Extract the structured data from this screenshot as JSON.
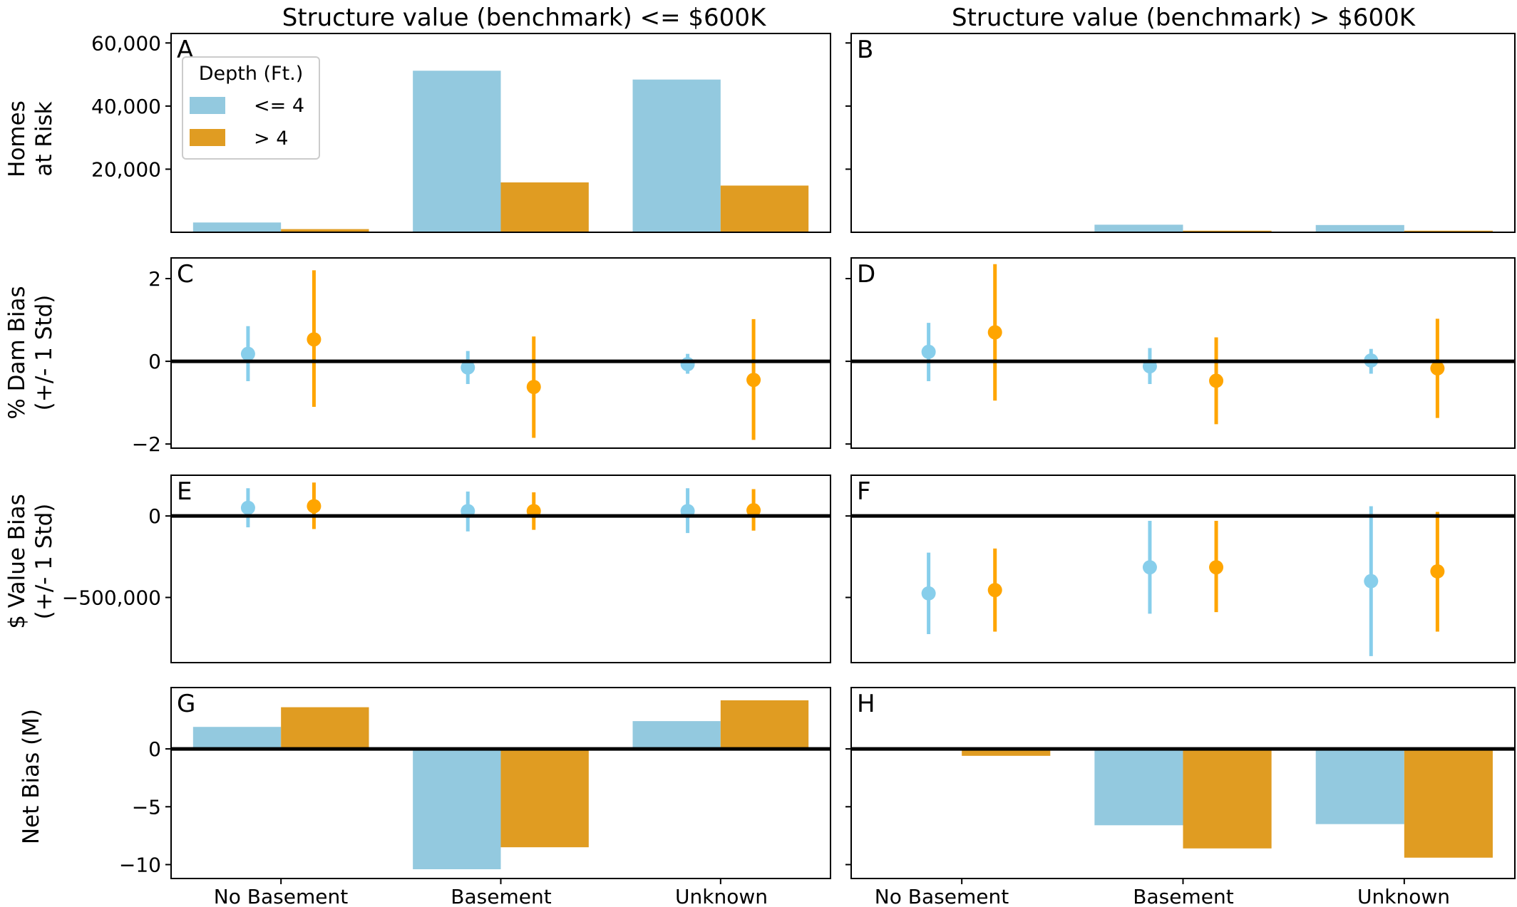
{
  "figure": {
    "column_titles": [
      "Structure value (benchmark) <= $600K",
      "Structure value (benchmark) > $600K"
    ],
    "row_labels": [
      [
        "Homes",
        "at Risk"
      ],
      [
        "% Dam Bias",
        "(+/- 1 Std)"
      ],
      [
        "$ Value Bias",
        "(+/- 1 Std)"
      ],
      [
        "Net Bias (M)"
      ]
    ],
    "categories": [
      "No Basement",
      "Basement",
      "Unknown"
    ],
    "legend": {
      "title": "Depth (Ft.)",
      "entries": [
        "<= 4",
        "> 4"
      ],
      "placement": "top-left of panel A"
    },
    "colors": {
      "bar_shallow": "#93c9df",
      "bar_deep": "#e09c22",
      "point_shallow": "#87ceeb",
      "point_deep": "#ffa500"
    }
  },
  "chart_data": [
    {
      "panel": "A",
      "type": "bar",
      "row": 0,
      "col": 0,
      "ylim": [
        0,
        63000
      ],
      "yticks": [
        20000,
        40000,
        60000
      ],
      "ytick_labels": [
        "20,000",
        "40,000",
        "60,000"
      ],
      "series": [
        {
          "name": "<= 4",
          "values": [
            3100,
            51200,
            48400
          ]
        },
        {
          "name": "> 4",
          "values": [
            1000,
            15800,
            14800
          ]
        }
      ]
    },
    {
      "panel": "B",
      "type": "bar",
      "row": 0,
      "col": 1,
      "ylim": [
        0,
        63000
      ],
      "yticks": [
        20000,
        40000,
        60000
      ],
      "series": [
        {
          "name": "<= 4",
          "values": [
            0,
            2400,
            2300
          ]
        },
        {
          "name": "> 4",
          "values": [
            0,
            500,
            500
          ]
        }
      ]
    },
    {
      "panel": "C",
      "type": "errorbar",
      "row": 1,
      "col": 0,
      "ylim": [
        -2.1,
        2.5
      ],
      "yticks": [
        -2,
        0,
        2
      ],
      "ytick_labels": [
        "−2",
        "0",
        "2"
      ],
      "zero_line": true,
      "series": [
        {
          "name": "<= 4",
          "mean": [
            0.18,
            -0.15,
            -0.07
          ],
          "low": [
            -0.48,
            -0.55,
            -0.3
          ],
          "high": [
            0.85,
            0.25,
            0.18
          ]
        },
        {
          "name": "> 4",
          "mean": [
            0.53,
            -0.62,
            -0.45
          ],
          "low": [
            -1.1,
            -1.85,
            -1.9
          ],
          "high": [
            2.2,
            0.6,
            1.02
          ]
        }
      ]
    },
    {
      "panel": "D",
      "type": "errorbar",
      "row": 1,
      "col": 1,
      "ylim": [
        -2.1,
        2.5
      ],
      "yticks": [
        -2,
        0,
        2
      ],
      "zero_line": true,
      "series": [
        {
          "name": "<= 4",
          "mean": [
            0.23,
            -0.12,
            0.02
          ],
          "low": [
            -0.48,
            -0.55,
            -0.3
          ],
          "high": [
            0.93,
            0.32,
            0.3
          ]
        },
        {
          "name": "> 4",
          "mean": [
            0.7,
            -0.47,
            -0.17
          ],
          "low": [
            -0.95,
            -1.52,
            -1.37
          ],
          "high": [
            2.35,
            0.58,
            1.03
          ]
        }
      ]
    },
    {
      "panel": "E",
      "type": "errorbar",
      "row": 2,
      "col": 0,
      "ylim": [
        -900000,
        250000
      ],
      "yticks": [
        -500000,
        0
      ],
      "ytick_labels": [
        "−500,000",
        "0"
      ],
      "zero_line": true,
      "series": [
        {
          "name": "<= 4",
          "mean": [
            50000,
            30000,
            30000
          ],
          "low": [
            -70000,
            -95000,
            -105000
          ],
          "high": [
            170000,
            150000,
            170000
          ]
        },
        {
          "name": "> 4",
          "mean": [
            60000,
            30000,
            35000
          ],
          "low": [
            -80000,
            -85000,
            -90000
          ],
          "high": [
            205000,
            145000,
            165000
          ]
        }
      ]
    },
    {
      "panel": "F",
      "type": "errorbar",
      "row": 2,
      "col": 1,
      "ylim": [
        -900000,
        250000
      ],
      "yticks": [
        -500000,
        0
      ],
      "zero_line": true,
      "series": [
        {
          "name": "<= 4",
          "mean": [
            -475000,
            -315000,
            -400000
          ],
          "low": [
            -725000,
            -600000,
            -860000
          ],
          "high": [
            -225000,
            -30000,
            60000
          ]
        },
        {
          "name": "> 4",
          "mean": [
            -455000,
            -315000,
            -340000
          ],
          "low": [
            -710000,
            -590000,
            -710000
          ],
          "high": [
            -200000,
            -30000,
            25000
          ]
        }
      ]
    },
    {
      "panel": "G",
      "type": "bar",
      "row": 3,
      "col": 0,
      "ylim": [
        -11.2,
        5.3
      ],
      "yticks": [
        -10,
        -5,
        0
      ],
      "ytick_labels": [
        "−10",
        "−5",
        "0"
      ],
      "zero_line": true,
      "series": [
        {
          "name": "<= 4",
          "values": [
            1.9,
            -10.4,
            2.4
          ]
        },
        {
          "name": "> 4",
          "values": [
            3.6,
            -8.5,
            4.2
          ]
        }
      ]
    },
    {
      "panel": "H",
      "type": "bar",
      "row": 3,
      "col": 1,
      "ylim": [
        -11.2,
        5.3
      ],
      "yticks": [
        -10,
        -5,
        0
      ],
      "zero_line": true,
      "series": [
        {
          "name": "<= 4",
          "values": [
            0,
            -6.6,
            -6.5
          ]
        },
        {
          "name": "> 4",
          "values": [
            -0.6,
            -8.6,
            -9.4
          ]
        }
      ]
    }
  ]
}
